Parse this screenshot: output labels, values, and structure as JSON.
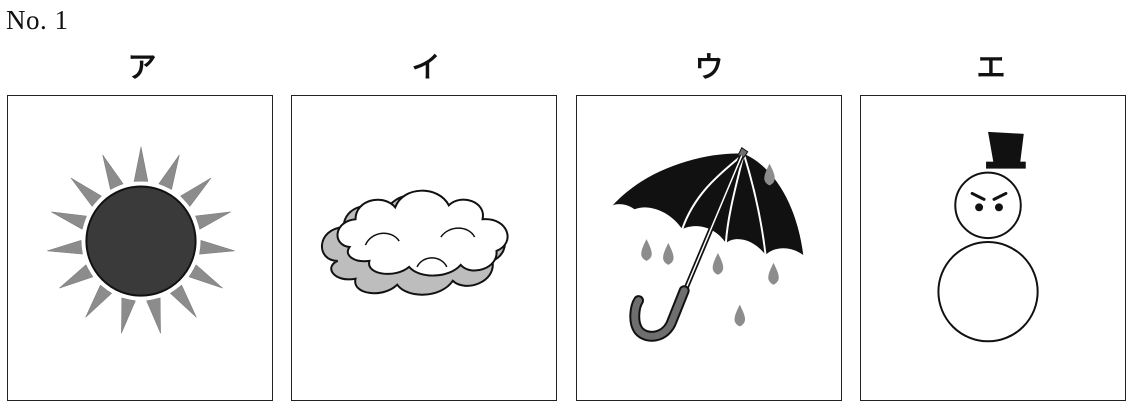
{
  "question": {
    "number_label": "No. 1"
  },
  "choices": [
    {
      "label": "ア",
      "icon": "sun-icon"
    },
    {
      "label": "イ",
      "icon": "cloud-icon"
    },
    {
      "label": "ウ",
      "icon": "umbrella-with-rain-icon"
    },
    {
      "label": "エ",
      "icon": "snowman-icon"
    }
  ],
  "colors": {
    "ink": "#111111",
    "gray_fill": "#8c8c8c",
    "light_gray": "#bdbdbd",
    "dark_fill": "#3a3a3a"
  }
}
